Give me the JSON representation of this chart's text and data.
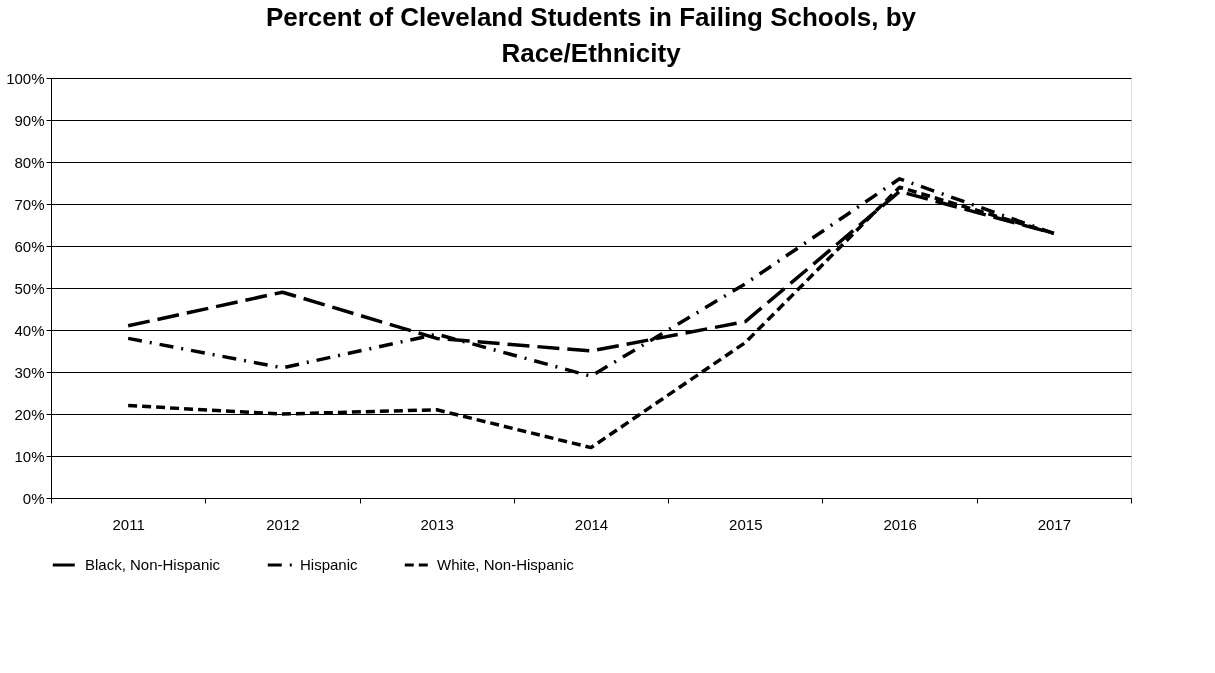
{
  "chart_data": {
    "type": "line",
    "title": "Percent of Cleveland Students in Failing Schools, by Race/Ethnicity",
    "categories": [
      "2011",
      "2012",
      "2013",
      "2014",
      "2015",
      "2016",
      "2017"
    ],
    "series": [
      {
        "name": "Black, Non-Hispanic",
        "color": "#000000",
        "line_style": "dashed",
        "values": [
          41,
          49,
          38,
          35,
          42,
          73,
          63
        ]
      },
      {
        "name": "Hispanic",
        "color": "#000000",
        "line_style": "dashed",
        "values": [
          38,
          31,
          39,
          29,
          51,
          76,
          63
        ]
      },
      {
        "name": "White, Non-Hispanic",
        "color": "#000000",
        "line_style": "dashed",
        "values": [
          22,
          20,
          21,
          12,
          37,
          74,
          63
        ]
      }
    ],
    "ylim": [
      0,
      100
    ],
    "yticks": [
      {
        "value": 0,
        "label": "0%"
      },
      {
        "value": 10,
        "label": "10%"
      },
      {
        "value": 20,
        "label": "20%"
      },
      {
        "value": 30,
        "label": "30%"
      },
      {
        "value": 40,
        "label": "40%"
      },
      {
        "value": 50,
        "label": "50%"
      },
      {
        "value": 60,
        "label": "60%"
      },
      {
        "value": 70,
        "label": "70%"
      },
      {
        "value": 80,
        "label": "80%"
      },
      {
        "value": 90,
        "label": "90%"
      },
      {
        "value": 100,
        "label": "100%"
      }
    ],
    "grid": "y",
    "legend": "bottom",
    "marker": "none"
  }
}
